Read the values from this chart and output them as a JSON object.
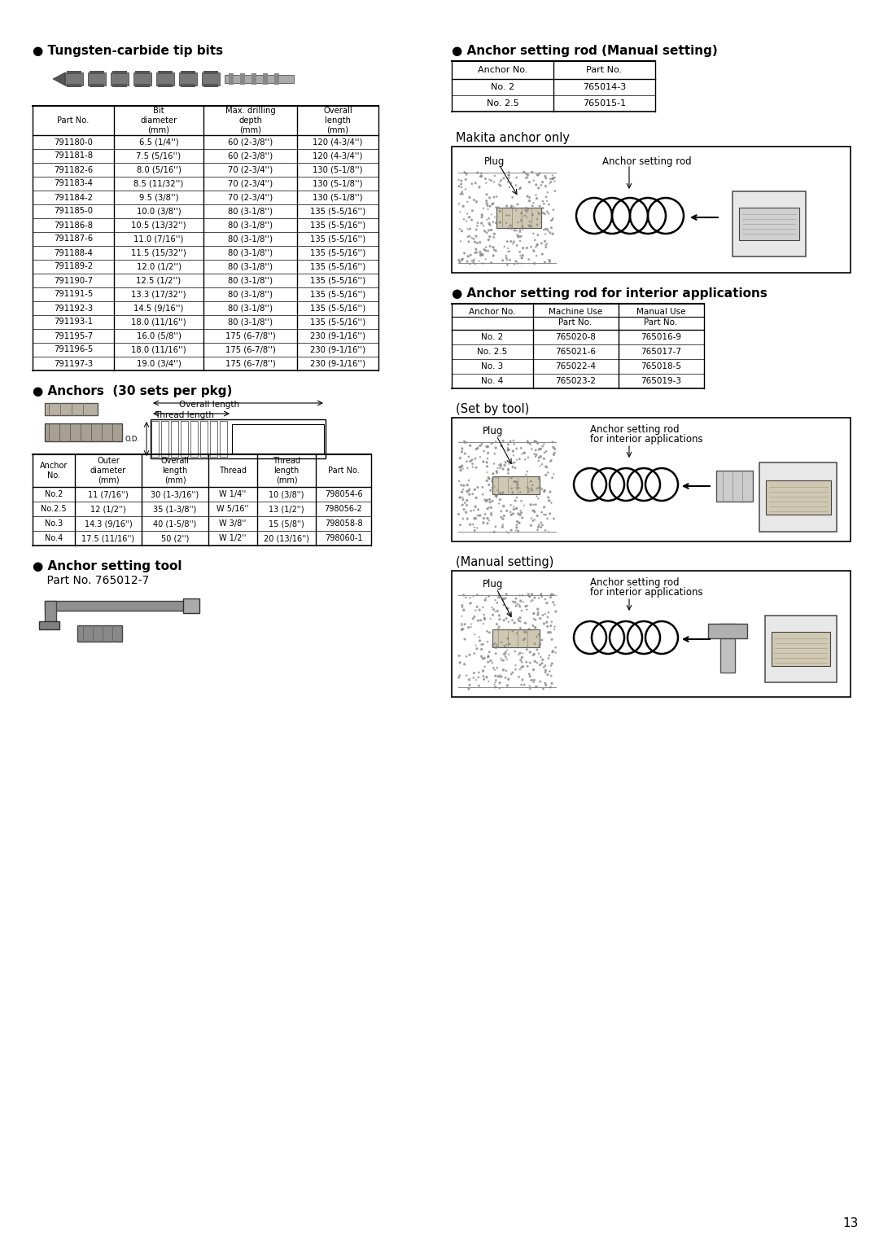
{
  "page_number": "13",
  "bg": "#ffffff",
  "section1_title": "● Tungsten-carbide tip bits",
  "section2_title": "● Anchor setting rod (Manual setting)",
  "section3_title": "● Anchors  (30 sets per pkg)",
  "section4_title": "● Anchor setting rod for interior applications",
  "section5_title": "● Anchor setting tool",
  "section5_partno": "    Part No. 765012-7",
  "makita_anchor_label": "Makita anchor only",
  "set_by_tool_label": "(Set by tool)",
  "manual_setting_label": "(Manual setting)",
  "anchor_rod_manual_headers": [
    "Anchor No.",
    "Part No."
  ],
  "anchor_rod_manual_rows": [
    [
      "No. 2",
      "765014-3"
    ],
    [
      "No. 2.5",
      "765015-1"
    ]
  ],
  "bits_table_headers": [
    "Part No.",
    "Bit\ndiameter\n(mm)",
    "Max. drilling\ndepth\n(mm)",
    "Overall\nlength\n(mm)"
  ],
  "bits_table_rows": [
    [
      "791180-0",
      "6.5 (1/4'')",
      "60 (2-3/8'')",
      "120 (4-3/4'')"
    ],
    [
      "791181-8",
      "7.5 (5/16'')",
      "60 (2-3/8'')",
      "120 (4-3/4'')"
    ],
    [
      "791182-6",
      "8.0 (5/16'')",
      "70 (2-3/4'')",
      "130 (5-1/8'')"
    ],
    [
      "791183-4",
      "8.5 (11/32'')",
      "70 (2-3/4'')",
      "130 (5-1/8'')"
    ],
    [
      "791184-2",
      "9.5 (3/8'')",
      "70 (2-3/4'')",
      "130 (5-1/8'')"
    ],
    [
      "791185-0",
      "10.0 (3/8'')",
      "80 (3-1/8'')",
      "135 (5-5/16'')"
    ],
    [
      "791186-8",
      "10.5 (13/32'')",
      "80 (3-1/8'')",
      "135 (5-5/16'')"
    ],
    [
      "791187-6",
      "11.0 (7/16'')",
      "80 (3-1/8'')",
      "135 (5-5/16'')"
    ],
    [
      "791188-4",
      "11.5 (15/32'')",
      "80 (3-1/8'')",
      "135 (5-5/16'')"
    ],
    [
      "791189-2",
      "12.0 (1/2'')",
      "80 (3-1/8'')",
      "135 (5-5/16'')"
    ],
    [
      "791190-7",
      "12.5 (1/2'')",
      "80 (3-1/8'')",
      "135 (5-5/16'')"
    ],
    [
      "791191-5",
      "13.3 (17/32'')",
      "80 (3-1/8'')",
      "135 (5-5/16'')"
    ],
    [
      "791192-3",
      "14.5 (9/16'')",
      "80 (3-1/8'')",
      "135 (5-5/16'')"
    ],
    [
      "791193-1",
      "18.0 (11/16'')",
      "80 (3-1/8'')",
      "135 (5-5/16'')"
    ],
    [
      "791195-7",
      "16.0 (5/8'')",
      "175 (6-7/8'')",
      "230 (9-1/16'')"
    ],
    [
      "791196-5",
      "18.0 (11/16'')",
      "175 (6-7/8'')",
      "230 (9-1/16'')"
    ],
    [
      "791197-3",
      "19.0 (3/4'')",
      "175 (6-7/8'')",
      "230 (9-1/16'')"
    ]
  ],
  "anchors_table_headers": [
    "Anchor\nNo.",
    "Outer\ndiameter\n(mm)",
    "Overall\nlength\n(mm)",
    "Thread",
    "Thread\nlength\n(mm)",
    "Part No."
  ],
  "anchors_table_rows": [
    [
      "No.2",
      "11 (7/16'')",
      "30 (1-3/16'')",
      "W 1/4''",
      "10 (3/8'')",
      "798054-6"
    ],
    [
      "No.2.5",
      "12 (1/2'')",
      "35 (1-3/8'')",
      "W 5/16''",
      "13 (1/2'')",
      "798056-2"
    ],
    [
      "No.3",
      "14.3 (9/16'')",
      "40 (1-5/8'')",
      "W 3/8''",
      "15 (5/8'')",
      "798058-8"
    ],
    [
      "No.4",
      "17.5 (11/16'')",
      "50 (2'')",
      "W 1/2''",
      "20 (13/16'')",
      "798060-1"
    ]
  ],
  "interior_rod_rows": [
    [
      "No. 2",
      "765020-8",
      "765016-9"
    ],
    [
      "No. 2.5",
      "765021-6",
      "765017-7"
    ],
    [
      "No. 3",
      "765022-4",
      "765018-5"
    ],
    [
      "No. 4",
      "765023-2",
      "765019-3"
    ]
  ]
}
